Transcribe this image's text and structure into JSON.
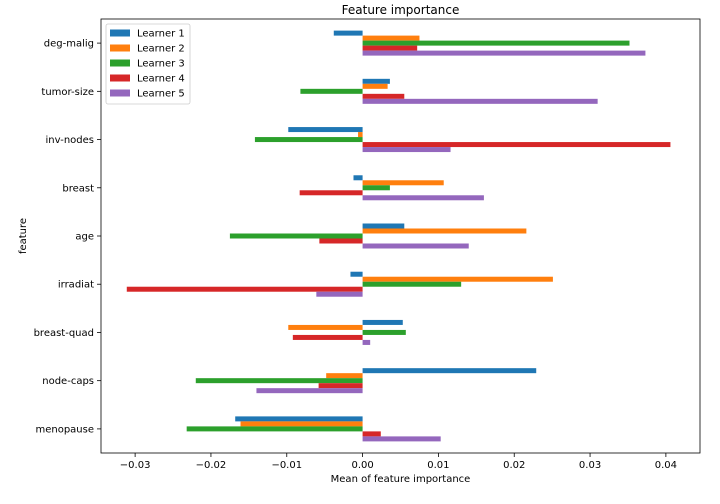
{
  "chart_data": {
    "type": "bar",
    "orientation": "horizontal",
    "title": "Feature importance",
    "xlabel": "Mean of feature importance",
    "ylabel": "feature",
    "xlim": [
      -0.0345,
      0.0445
    ],
    "xticks": [
      -0.03,
      -0.02,
      -0.01,
      0.0,
      0.01,
      0.02,
      0.03,
      0.04
    ],
    "xtick_labels": [
      "−0.03",
      "−0.02",
      "−0.01",
      "0.00",
      "0.01",
      "0.02",
      "0.03",
      "0.04"
    ],
    "grid": false,
    "legend_position": "top-left",
    "categories": [
      "deg-malig",
      "tumor-size",
      "inv-nodes",
      "breast",
      "age",
      "irradiat",
      "breast-quad",
      "node-caps",
      "menopause"
    ],
    "series": [
      {
        "name": "Learner 1",
        "color": "#1f77b4",
        "values": [
          -0.0038,
          0.0036,
          -0.0098,
          -0.0012,
          0.0055,
          -0.0016,
          0.0053,
          0.0229,
          -0.0168
        ]
      },
      {
        "name": "Learner 2",
        "color": "#ff7f0e",
        "values": [
          0.0075,
          0.0033,
          -0.0006,
          0.0107,
          0.0216,
          0.0251,
          -0.0098,
          -0.0048,
          -0.0161
        ]
      },
      {
        "name": "Learner 3",
        "color": "#2ca02c",
        "values": [
          0.0352,
          -0.0082,
          -0.0142,
          0.0036,
          -0.0175,
          0.013,
          0.0057,
          -0.022,
          -0.0232
        ]
      },
      {
        "name": "Learner 4",
        "color": "#d62728",
        "values": [
          0.0072,
          0.0055,
          0.0406,
          -0.0083,
          -0.0057,
          -0.0311,
          -0.0092,
          -0.0058,
          0.0024
        ]
      },
      {
        "name": "Learner 5",
        "color": "#9467bd",
        "values": [
          0.0373,
          0.031,
          0.0116,
          0.016,
          0.014,
          -0.0061,
          0.001,
          -0.014,
          0.0103
        ]
      }
    ]
  }
}
